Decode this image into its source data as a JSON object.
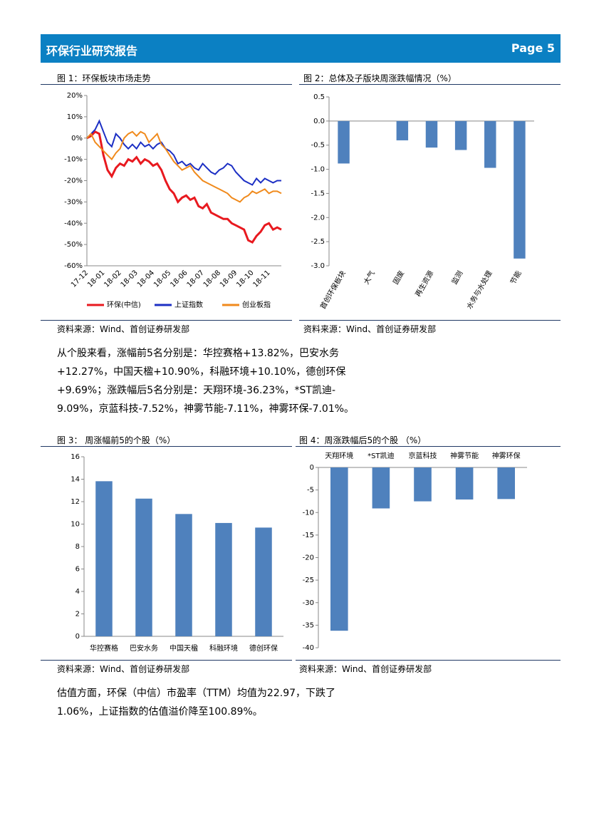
{
  "header": {
    "title": "环保行业研究报告",
    "page": "Page 5"
  },
  "figures": [
    {
      "title": "图 1：环保板块市场走势",
      "source": "资料来源：Wind、首创证券研发部",
      "chart_data": {
        "type": "line",
        "categories": [
          "17-12",
          null,
          null,
          null,
          "18-01",
          null,
          null,
          null,
          "18-02",
          null,
          null,
          null,
          "18-03",
          null,
          null,
          null,
          "18-04",
          null,
          null,
          null,
          "18-05",
          null,
          null,
          null,
          "18-06",
          null,
          null,
          null,
          "18-07",
          null,
          null,
          null,
          "18-08",
          null,
          null,
          null,
          "18-09",
          null,
          null,
          null,
          "18-10",
          null,
          null,
          null,
          "18-11",
          null,
          null,
          null
        ],
        "series": [
          {
            "name": "环保(中信)",
            "color": "#e8191f",
            "values": [
              0,
              1,
              3,
              2,
              -8,
              -15,
              -18,
              -14,
              -12,
              -13,
              -10,
              -11,
              -9,
              -12,
              -10,
              -11,
              -13,
              -12,
              -15,
              -20,
              -24,
              -26,
              -30,
              -28,
              -27,
              -29,
              -28,
              -32,
              -33,
              -31,
              -35,
              -36,
              -37,
              -38,
              -38,
              -40,
              -41,
              -42,
              -43,
              -48,
              -49,
              -46,
              -44,
              -41,
              -40,
              -43,
              -42,
              -43
            ]
          },
          {
            "name": "上证指数",
            "color": "#1c2fc4",
            "values": [
              0,
              2,
              4,
              8,
              3,
              -2,
              -4,
              2,
              0,
              -3,
              -5,
              -3,
              -5,
              -2,
              -4,
              -3,
              -5,
              -3,
              -2,
              -5,
              -6,
              -8,
              -12,
              -11,
              -13,
              -12,
              -14,
              -15,
              -12,
              -14,
              -16,
              -17,
              -15,
              -14,
              -12,
              -13,
              -16,
              -18,
              -20,
              -21,
              -22,
              -19,
              -21,
              -19,
              -20,
              -21,
              -20,
              -20
            ]
          },
          {
            "name": "创业板指",
            "color": "#f08a1c",
            "values": [
              0,
              2,
              -2,
              -4,
              -6,
              -8,
              -10,
              -7,
              -5,
              0,
              2,
              3,
              1,
              3,
              2,
              -2,
              0,
              2,
              -3,
              -5,
              -8,
              -11,
              -13,
              -15,
              -14,
              -13,
              -16,
              -18,
              -20,
              -21,
              -22,
              -23,
              -24,
              -25,
              -26,
              -28,
              -29,
              -30,
              -28,
              -27,
              -25,
              -26,
              -25,
              -24,
              -26,
              -25,
              -25,
              -26
            ]
          }
        ],
        "ylim": [
          -60,
          20
        ],
        "yticks": [
          {
            "value": 20,
            "label": "20%"
          },
          {
            "value": 10,
            "label": "10%"
          },
          {
            "value": 0,
            "label": "0%"
          },
          {
            "value": -10,
            "label": "-10%"
          },
          {
            "value": -20,
            "label": "-20%"
          },
          {
            "value": -30,
            "label": "-30%"
          },
          {
            "value": -40,
            "label": "-40%"
          },
          {
            "value": -50,
            "label": "-50%"
          },
          {
            "value": -60,
            "label": "-60%"
          }
        ],
        "legend": "bottom"
      }
    },
    {
      "title": "图 2：总体及子版块周涨跌幅情况（%）",
      "source": "资料来源：Wind、首创证券研发部",
      "chart_data": {
        "type": "bar",
        "color": "#4f81bd",
        "categories": [
          "首创环保板块",
          "大气",
          "固废",
          "再生资源",
          "监测",
          "水务与水处理",
          "节能"
        ],
        "values": [
          -0.88,
          0,
          -0.4,
          -0.55,
          -0.6,
          -0.97,
          -2.85
        ],
        "ylim": [
          -3,
          0.5
        ],
        "yticks": [
          0.5,
          {
            "value": 0,
            "label": "0.0"
          },
          -0.5,
          {
            "value": -1,
            "label": "-1.0"
          },
          -1.5,
          {
            "value": -2,
            "label": "-2.0"
          },
          -2.5,
          {
            "value": -3,
            "label": "-3.0"
          }
        ]
      }
    },
    {
      "title": "图 3： 周涨幅前5的个股（%）",
      "source": "资料来源：Wind、首创证券研发部",
      "chart_data": {
        "type": "bar",
        "color": "#4f81bd",
        "categories": [
          "华控赛格",
          "巴安水务",
          "中国天楹",
          "科融环境",
          "德创环保"
        ],
        "values": [
          13.82,
          12.27,
          10.9,
          10.1,
          9.69
        ],
        "ylim": [
          0,
          16
        ],
        "yticks": [
          0,
          2,
          4,
          6,
          8,
          10,
          12,
          14,
          16
        ]
      }
    },
    {
      "title": "图 4：周涨跌幅后5的个股 （%）",
      "source": "资料来源：Wind、首创证券研发部",
      "chart_data": {
        "type": "bar",
        "color": "#4f81bd",
        "x_axis_position": "top",
        "categories": [
          "天翔环境",
          "*ST凯迪",
          "京蓝科技",
          "神雾节能",
          "神雾环保"
        ],
        "values": [
          -36.23,
          -9.09,
          -7.52,
          -7.11,
          -7.01
        ],
        "ylim": [
          -40,
          0
        ],
        "yticks": [
          0,
          -5,
          -10,
          -15,
          -20,
          -25,
          -30,
          -35,
          -40
        ]
      }
    }
  ],
  "paragraphs": [
    [
      "从个股来看，涨幅前5名分别是：华控赛格+13.82%，巴安水务",
      "+12.27%，中国天楹+10.90%，科融环境+10.10%，德创环保",
      "+9.69%；涨跌幅后5名分别是：天翔环境-36.23%，*ST凯迪-",
      "9.09%，京蓝科技-7.52%，神雾节能-7.11%，神雾环保-7.01%。"
    ],
    [
      "估值方面，环保（中信）市盈率（TTM）均值为22.97，下跌了",
      "1.06%，上证指数的估值溢价降至100.89%。"
    ]
  ]
}
